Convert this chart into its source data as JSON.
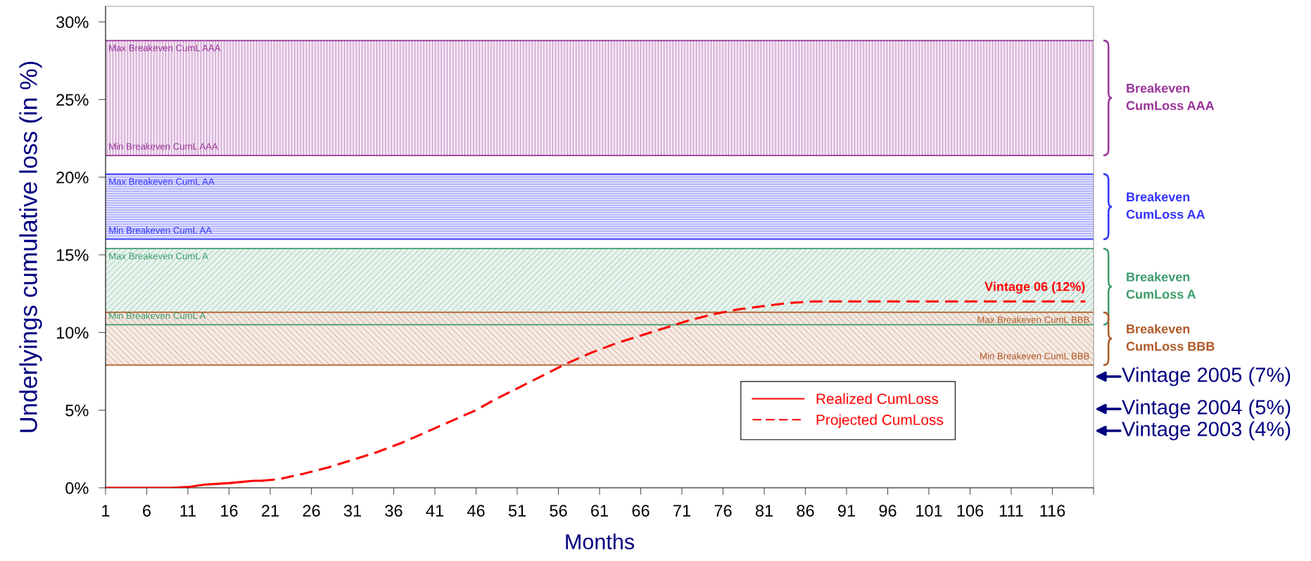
{
  "chart_data": {
    "type": "line",
    "xlabel": "Months",
    "ylabel": "Underlyings cumulative loss (in %)",
    "xlim": [
      1,
      121
    ],
    "xticks": [
      1,
      6,
      11,
      16,
      21,
      26,
      31,
      36,
      41,
      46,
      51,
      56,
      61,
      66,
      71,
      76,
      81,
      86,
      91,
      96,
      101,
      106,
      111,
      116,
      {
        "value": 121,
        "label": null
      }
    ],
    "ylim": [
      0,
      31
    ],
    "yticks": [
      {
        "value": 0,
        "label": "0%"
      },
      {
        "value": 5,
        "label": "5%"
      },
      {
        "value": 10,
        "label": "10%"
      },
      {
        "value": 15,
        "label": "15%"
      },
      {
        "value": 20,
        "label": "20%"
      },
      {
        "value": 25,
        "label": "25%"
      },
      {
        "value": 30,
        "label": "30%"
      }
    ],
    "grid": false,
    "legend": "bottom right",
    "series": [
      {
        "name": "Realized CumLoss",
        "color": "#ff0000",
        "line_style": "solid",
        "x": [
          1,
          9,
          11,
          13,
          16,
          19,
          20
        ],
        "values": [
          0,
          0,
          0.05,
          0.2,
          0.3,
          0.45,
          0.45
        ]
      },
      {
        "name": "Projected CumLoss",
        "color": "#ff0000",
        "line_style": "dashed",
        "x": [
          20,
          22,
          25,
          28,
          31,
          34,
          37,
          40,
          43,
          46,
          48,
          51,
          54,
          57,
          60,
          63,
          66,
          69,
          72,
          75,
          78,
          81,
          84,
          87,
          90,
          100,
          110,
          120
        ],
        "values": [
          0.45,
          0.55,
          0.9,
          1.3,
          1.8,
          2.3,
          2.9,
          3.6,
          4.3,
          5.0,
          5.6,
          6.4,
          7.2,
          8.0,
          8.7,
          9.3,
          9.8,
          10.3,
          10.8,
          11.2,
          11.5,
          11.7,
          11.9,
          12.0,
          12.0,
          12.0,
          12.0,
          12.0
        ]
      }
    ],
    "bands": [
      {
        "axis": "y",
        "from": 21.4,
        "to": 28.8,
        "label": "Breakeven\nCumLoss AAA",
        "color": "#993399"
      },
      {
        "axis": "y",
        "from": 16.0,
        "to": 20.2,
        "label": "Breakeven\nCumLoss AA",
        "color": "#3333ff"
      },
      {
        "axis": "y",
        "from": 10.5,
        "to": 15.4,
        "label": "Breakeven\nCumLoss A",
        "color": "#3c9c6c"
      },
      {
        "axis": "y",
        "from": 7.9,
        "to": 11.3,
        "label": "Breakeven\nCumLoss BBB",
        "color": "#b05a28"
      }
    ],
    "ref_lines": [
      {
        "axis": "y",
        "value": 28.8,
        "label": "Max Breakeven CumL AAA",
        "color": "#993399"
      },
      {
        "axis": "y",
        "value": 21.4,
        "label": "Min Breakeven CumL AAA",
        "color": "#993399"
      },
      {
        "axis": "y",
        "value": 20.2,
        "label": "Max Breakeven CumL AA",
        "color": "#3333ff"
      },
      {
        "axis": "y",
        "value": 16.0,
        "label": "Min Breakeven CumL AA",
        "color": "#3333ff"
      },
      {
        "axis": "y",
        "value": 15.4,
        "label": "Max Breakeven CumL A",
        "color": "#3c9c6c"
      },
      {
        "axis": "y",
        "value": 10.5,
        "label": "Min Breakeven CumL A",
        "color": "#3c9c6c"
      },
      {
        "axis": "y",
        "value": 11.3,
        "label": "Max Breakeven CumL BBB",
        "color": "#b05a28"
      },
      {
        "axis": "y",
        "value": 7.9,
        "label": "Min Breakeven CumL BBB",
        "color": "#b05a28"
      }
    ],
    "annotations": [
      {
        "text": "Vintage 06 (12%)",
        "x": 120,
        "y": 12.0
      },
      "Vintage 2005 (7%)",
      "Vintage 2004 (5%)",
      "Vintage 2003 (4%)"
    ]
  }
}
